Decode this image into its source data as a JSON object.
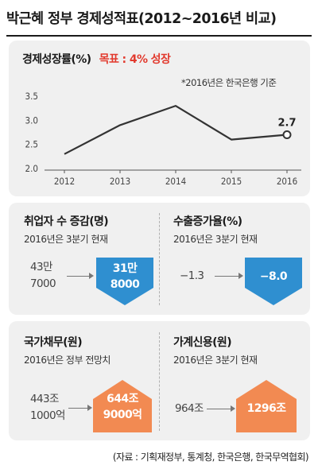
{
  "title": "박근혜 정부 경제성적표(2012~2016년 비교)",
  "source": "(자료 : 기획재정부, 통계청, 한국은행, 한국무역협회)",
  "colors": {
    "accent_blue": "#2f8fd0",
    "accent_orange": "#f28a52",
    "target_red": "#e23a2e",
    "line": "#333333"
  },
  "growth": {
    "label": "경제성장률(%)",
    "target": "목표 : 4% 성장",
    "note": "*2016년은 한국은행 기준"
  },
  "employment": {
    "label": "취업자 수 증감(명)",
    "note": "2016년은 3분기 현재",
    "before": [
      "43만",
      "7000"
    ],
    "after": [
      "31만",
      "8000"
    ],
    "arrow_icon": "arrow-down-icon",
    "arrow_color": "#2f8fd0"
  },
  "exports": {
    "label": "수출증가율(%)",
    "note": "2016년은 3분기 현재",
    "before": "−1.3",
    "after": "−8.0",
    "arrow_icon": "arrow-down-icon",
    "arrow_color": "#2f8fd0"
  },
  "national_debt": {
    "label": "국가채무(원)",
    "note": "2016년은 정부 전망치",
    "before": [
      "443조",
      "1000억"
    ],
    "after": [
      "644조",
      "9000억"
    ],
    "arrow_icon": "arrow-up-icon",
    "arrow_color": "#f28a52"
  },
  "household_credit": {
    "label": "가계신용(원)",
    "note": "2016년은 3분기 현재",
    "before": "964조",
    "after": "1296조",
    "arrow_icon": "arrow-up-icon",
    "arrow_color": "#f28a52"
  },
  "chart_data": {
    "type": "line",
    "x": [
      "2012",
      "2013",
      "2014",
      "2015",
      "2016"
    ],
    "series": [
      {
        "values": [
          2.3,
          2.9,
          3.3,
          2.6,
          2.7
        ]
      }
    ],
    "ylim": [
      2.0,
      3.5
    ],
    "yticks": [
      "2.0",
      "2.5",
      "3.0",
      "3.5"
    ],
    "data_labels": [
      {
        "x": "2016",
        "label": "2.7"
      }
    ],
    "grid": false
  }
}
